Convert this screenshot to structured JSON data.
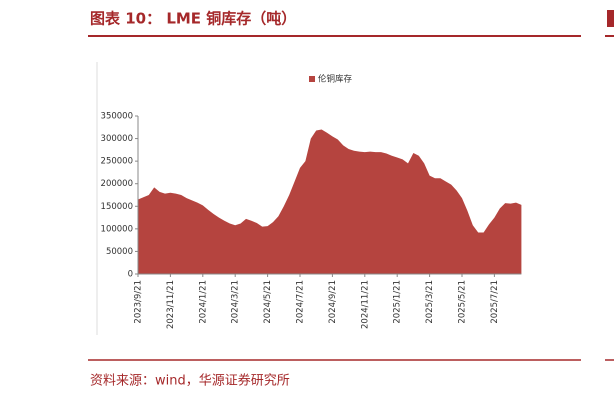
{
  "header": {
    "title": "图表 10： LME 铜库存（吨）"
  },
  "chart_data": {
    "type": "area",
    "categories": [
      "2023/9/21",
      null,
      null,
      null,
      null,
      null,
      "2023/11/21",
      null,
      null,
      null,
      null,
      null,
      "2024/1/21",
      null,
      null,
      null,
      null,
      null,
      "2024/3/21",
      null,
      null,
      null,
      null,
      null,
      "2024/5/21",
      null,
      null,
      null,
      null,
      null,
      "2024/7/21",
      null,
      null,
      null,
      null,
      null,
      "2024/9/21",
      null,
      null,
      null,
      null,
      null,
      "2024/11/21",
      null,
      null,
      null,
      null,
      null,
      "2025/1/21",
      null,
      null,
      null,
      null,
      null,
      "2025/3/21",
      null,
      null,
      null,
      null,
      null,
      "2025/5/21",
      null,
      null,
      null,
      null,
      null,
      "2025/7/21",
      null,
      null,
      null,
      null,
      null
    ],
    "series": [
      {
        "name": "伦铜库存",
        "color": "#b5443f",
        "values": [
          165000,
          170000,
          175000,
          192000,
          182000,
          178000,
          180000,
          178000,
          175000,
          168000,
          163000,
          158000,
          152000,
          142000,
          133000,
          125000,
          118000,
          112000,
          108000,
          112000,
          122000,
          118000,
          113000,
          105000,
          106000,
          115000,
          128000,
          150000,
          175000,
          205000,
          235000,
          250000,
          300000,
          318000,
          320000,
          313000,
          305000,
          298000,
          285000,
          277000,
          273000,
          271000,
          270000,
          271000,
          270000,
          270000,
          267000,
          262000,
          258000,
          254000,
          245000,
          268000,
          262000,
          245000,
          218000,
          212000,
          212000,
          205000,
          198000,
          185000,
          168000,
          140000,
          108000,
          92000,
          92000,
          110000,
          125000,
          145000,
          157000,
          156000,
          158000,
          153000
        ]
      }
    ],
    "ylim": [
      0,
      350000
    ],
    "yticks": [
      0,
      50000,
      100000,
      150000,
      200000,
      250000,
      300000,
      350000
    ],
    "legend": "top"
  },
  "footer": {
    "source": "资料来源：wind，华源证券研究所"
  }
}
